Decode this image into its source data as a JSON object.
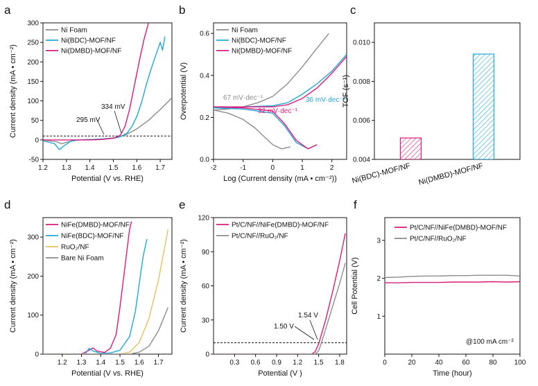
{
  "colors": {
    "gray": "#8c8c8c",
    "cyan": "#1fa8d8",
    "magenta": "#d81b7a",
    "yellow": "#e8c060",
    "black": "#111111"
  },
  "chart_data": [
    {
      "panel": "a",
      "type": "line",
      "xlabel": "Potential (V vs. RHE)",
      "ylabel": "Current density (mA • cm⁻²)",
      "xlim": [
        1.2,
        1.75
      ],
      "ylim": [
        -50,
        300
      ],
      "xticks": [
        "1.2",
        "1.3",
        "1.4",
        "1.5",
        "1.6",
        "1.7"
      ],
      "yticks": [
        "-50",
        "0",
        "50",
        "100",
        "150",
        "200",
        "250",
        "300"
      ],
      "legend": [
        "Ni Foam",
        "Ni(BDC)-MOF/NF",
        "Ni(DMBD)-MOF/NF"
      ],
      "annotations": [
        "334 mV",
        "295 mV"
      ],
      "reference_line_y": 10,
      "series": [
        {
          "name": "Ni Foam",
          "color": "gray",
          "x": [
            1.2,
            1.26,
            1.28,
            1.3,
            1.35,
            1.4,
            1.45,
            1.5,
            1.55,
            1.6,
            1.65,
            1.7,
            1.75
          ],
          "y": [
            0,
            -5,
            -10,
            -6,
            0,
            1,
            2,
            5,
            12,
            28,
            50,
            78,
            108
          ]
        },
        {
          "name": "Ni(BDC)-MOF/NF",
          "color": "cyan",
          "x": [
            1.2,
            1.25,
            1.27,
            1.29,
            1.32,
            1.35,
            1.4,
            1.45,
            1.5,
            1.53,
            1.56,
            1.58,
            1.6,
            1.62,
            1.64,
            1.66,
            1.68,
            1.7,
            1.71,
            1.72
          ],
          "y": [
            -2,
            -10,
            -25,
            -15,
            -3,
            0,
            1,
            2,
            4,
            8,
            18,
            35,
            60,
            95,
            140,
            180,
            215,
            250,
            230,
            265
          ]
        },
        {
          "name": "Ni(DMBD)-MOF/NF",
          "color": "magenta",
          "x": [
            1.2,
            1.3,
            1.4,
            1.45,
            1.5,
            1.53,
            1.55,
            1.57,
            1.59,
            1.61,
            1.63,
            1.65
          ],
          "y": [
            0,
            0,
            0,
            1,
            4,
            12,
            35,
            80,
            140,
            200,
            255,
            300
          ]
        }
      ]
    },
    {
      "panel": "b",
      "type": "line",
      "xlabel": "Log (Current density (mA • cm⁻²))",
      "ylabel": "Overpotential (V)",
      "xlim": [
        -2,
        2.5
      ],
      "ylim": [
        0,
        0.65
      ],
      "xticks": [
        "-2",
        "-1",
        "0",
        "1",
        "2"
      ],
      "yticks": [
        "0.0",
        "0.2",
        "0.4",
        "0.6"
      ],
      "legend": [
        "Ni Foam",
        "Ni(BDC)-MOF/NF",
        "Ni(DMBD)-MOF/NF"
      ],
      "annotations": [
        "67 mV·dec⁻¹",
        "36 mV·dec⁻¹",
        "32 mV·dec⁻¹"
      ],
      "series": [
        {
          "name": "Ni Foam (upper)",
          "color": "gray",
          "x": [
            -2,
            -1.5,
            -1,
            -0.5,
            0,
            0.5,
            1,
            1.5,
            1.9
          ],
          "y": [
            0.235,
            0.24,
            0.25,
            0.27,
            0.3,
            0.36,
            0.44,
            0.53,
            0.6
          ]
        },
        {
          "name": "Ni Foam (lower)",
          "color": "gray",
          "x": [
            -2,
            -1.5,
            -1,
            -0.6,
            -0.3,
            0,
            0.3,
            0.6
          ],
          "y": [
            0.235,
            0.22,
            0.19,
            0.15,
            0.11,
            0.07,
            0.05,
            0.06
          ]
        },
        {
          "name": "Ni(BDC)-MOF/NF (upper)",
          "color": "cyan",
          "x": [
            -2,
            -1,
            0,
            0.5,
            1,
            1.5,
            2,
            2.5
          ],
          "y": [
            0.245,
            0.25,
            0.255,
            0.27,
            0.31,
            0.36,
            0.42,
            0.5
          ]
        },
        {
          "name": "Ni(BDC)-MOF/NF (lower)",
          "color": "cyan",
          "x": [
            -2,
            -1,
            0,
            0.4,
            0.8,
            1.2,
            1.5
          ],
          "y": [
            0.245,
            0.24,
            0.22,
            0.16,
            0.08,
            0.05,
            0.07
          ]
        },
        {
          "name": "Ni(DMBD)-MOF/NF (upper)",
          "color": "magenta",
          "x": [
            -2,
            -1,
            0,
            0.5,
            1,
            1.5,
            2,
            2.5
          ],
          "y": [
            0.25,
            0.25,
            0.25,
            0.26,
            0.29,
            0.34,
            0.41,
            0.49
          ]
        },
        {
          "name": "Ni(DMBD)-MOF/NF (lower)",
          "color": "magenta",
          "x": [
            -2,
            -1,
            0,
            0.4,
            0.8,
            1.2,
            1.5
          ],
          "y": [
            0.25,
            0.245,
            0.23,
            0.17,
            0.09,
            0.05,
            0.07
          ]
        }
      ]
    },
    {
      "panel": "c",
      "type": "bar",
      "ylabel": "TOF (s⁻¹)",
      "ylim": [
        0.004,
        0.011
      ],
      "yticks": [
        "0.004",
        "0.006",
        "0.008",
        "0.010"
      ],
      "categories": [
        "Ni(BDC)-MOF/NF",
        "Ni(DMBD)-MOF/NF"
      ],
      "values": [
        0.0051,
        0.0094
      ],
      "bar_colors": [
        "magenta",
        "cyan"
      ],
      "hatched": true
    },
    {
      "panel": "d",
      "type": "line",
      "xlabel": "Potential (V vs. RHE)",
      "ylabel": "Current density (mA • cm⁻²)",
      "xlim": [
        1.1,
        1.77
      ],
      "ylim": [
        0,
        350
      ],
      "xticks": [
        "1.2",
        "1.3",
        "1.4",
        "1.5",
        "1.6",
        "1.7"
      ],
      "yticks": [
        "0",
        "100",
        "200",
        "300"
      ],
      "legend": [
        "NiFe(DMBD)-MOF/NF",
        "NiFe(BDC)-MOF/NF",
        "RuO₂/NF",
        "Bare Ni Foam"
      ],
      "series": [
        {
          "name": "NiFe(DMBD)-MOF/NF",
          "color": "magenta",
          "x": [
            1.1,
            1.3,
            1.34,
            1.36,
            1.38,
            1.42,
            1.45,
            1.48,
            1.5,
            1.52,
            1.54,
            1.55,
            1.56
          ],
          "y": [
            0,
            0,
            10,
            16,
            8,
            4,
            15,
            50,
            120,
            200,
            280,
            320,
            340
          ]
        },
        {
          "name": "NiFe(BDC)-MOF/NF",
          "color": "cyan",
          "x": [
            1.1,
            1.32,
            1.34,
            1.36,
            1.4,
            1.45,
            1.5,
            1.55,
            1.58,
            1.6,
            1.62,
            1.64
          ],
          "y": [
            0,
            0,
            15,
            8,
            2,
            3,
            10,
            45,
            110,
            180,
            250,
            295
          ]
        },
        {
          "name": "RuO₂/NF",
          "color": "yellow",
          "x": [
            1.1,
            1.5,
            1.55,
            1.6,
            1.65,
            1.7,
            1.75
          ],
          "y": [
            0,
            0,
            5,
            30,
            90,
            190,
            320
          ]
        },
        {
          "name": "Bare Ni Foam",
          "color": "gray",
          "x": [
            1.1,
            1.55,
            1.6,
            1.65,
            1.7,
            1.75
          ],
          "y": [
            0,
            0,
            5,
            20,
            60,
            120
          ]
        }
      ]
    },
    {
      "panel": "e",
      "type": "line",
      "xlabel": "Potential (V )",
      "ylabel": "Current density (mA • cm⁻²)",
      "xlim": [
        0,
        1.9
      ],
      "ylim": [
        0,
        120
      ],
      "xticks": [
        "0.3",
        "0.6",
        "0.9",
        "1.2",
        "1.5",
        "1.8"
      ],
      "yticks": [
        "0",
        "30",
        "60",
        "90",
        "120"
      ],
      "legend": [
        "Pt/C/NF//NiFe(DMBD)-MOF/NF",
        "Pt/C/NF//RuO₂/NF"
      ],
      "annotations": [
        "1.54 V",
        "1.50 V"
      ],
      "reference_line_y": 10,
      "series": [
        {
          "name": "Pt/C/NF//NiFe(DMBD)-MOF/NF",
          "color": "magenta",
          "x": [
            0,
            1.4,
            1.45,
            1.5,
            1.6,
            1.7,
            1.8,
            1.88
          ],
          "y": [
            0,
            0,
            2,
            9,
            30,
            55,
            82,
            106
          ]
        },
        {
          "name": "Pt/C/NF//RuO₂/NF",
          "color": "gray",
          "x": [
            0,
            1.45,
            1.5,
            1.54,
            1.6,
            1.7,
            1.8,
            1.88
          ],
          "y": [
            0,
            0,
            3,
            10,
            22,
            42,
            62,
            80
          ]
        }
      ]
    },
    {
      "panel": "f",
      "type": "line",
      "xlabel": "Time (hour)",
      "ylabel": "Cell Potential (V)",
      "xlim": [
        0,
        100
      ],
      "ylim": [
        0,
        3.6
      ],
      "xticks": [
        "0",
        "20",
        "40",
        "60",
        "80",
        "100"
      ],
      "yticks": [
        "1",
        "2",
        "3"
      ],
      "legend": [
        "Pt/C/NF//NiFe(DMBD)-MOF/NF",
        "Pt/C/NF//RuO₂/NF"
      ],
      "annotations": [
        "@100 mA cm⁻²"
      ],
      "series": [
        {
          "name": "Pt/C/NF//NiFe(DMBD)-MOF/NF",
          "color": "magenta",
          "x": [
            0,
            10,
            20,
            30,
            40,
            50,
            60,
            70,
            80,
            90,
            100
          ],
          "y": [
            1.88,
            1.88,
            1.89,
            1.89,
            1.89,
            1.9,
            1.9,
            1.9,
            1.91,
            1.9,
            1.91
          ]
        },
        {
          "name": "Pt/C/NF//RuO₂/NF",
          "color": "gray",
          "x": [
            0,
            10,
            20,
            30,
            40,
            50,
            60,
            70,
            80,
            90,
            95,
            100
          ],
          "y": [
            2.02,
            2.03,
            2.05,
            2.06,
            2.06,
            2.07,
            2.07,
            2.08,
            2.08,
            2.08,
            2.07,
            2.06
          ]
        }
      ]
    }
  ]
}
